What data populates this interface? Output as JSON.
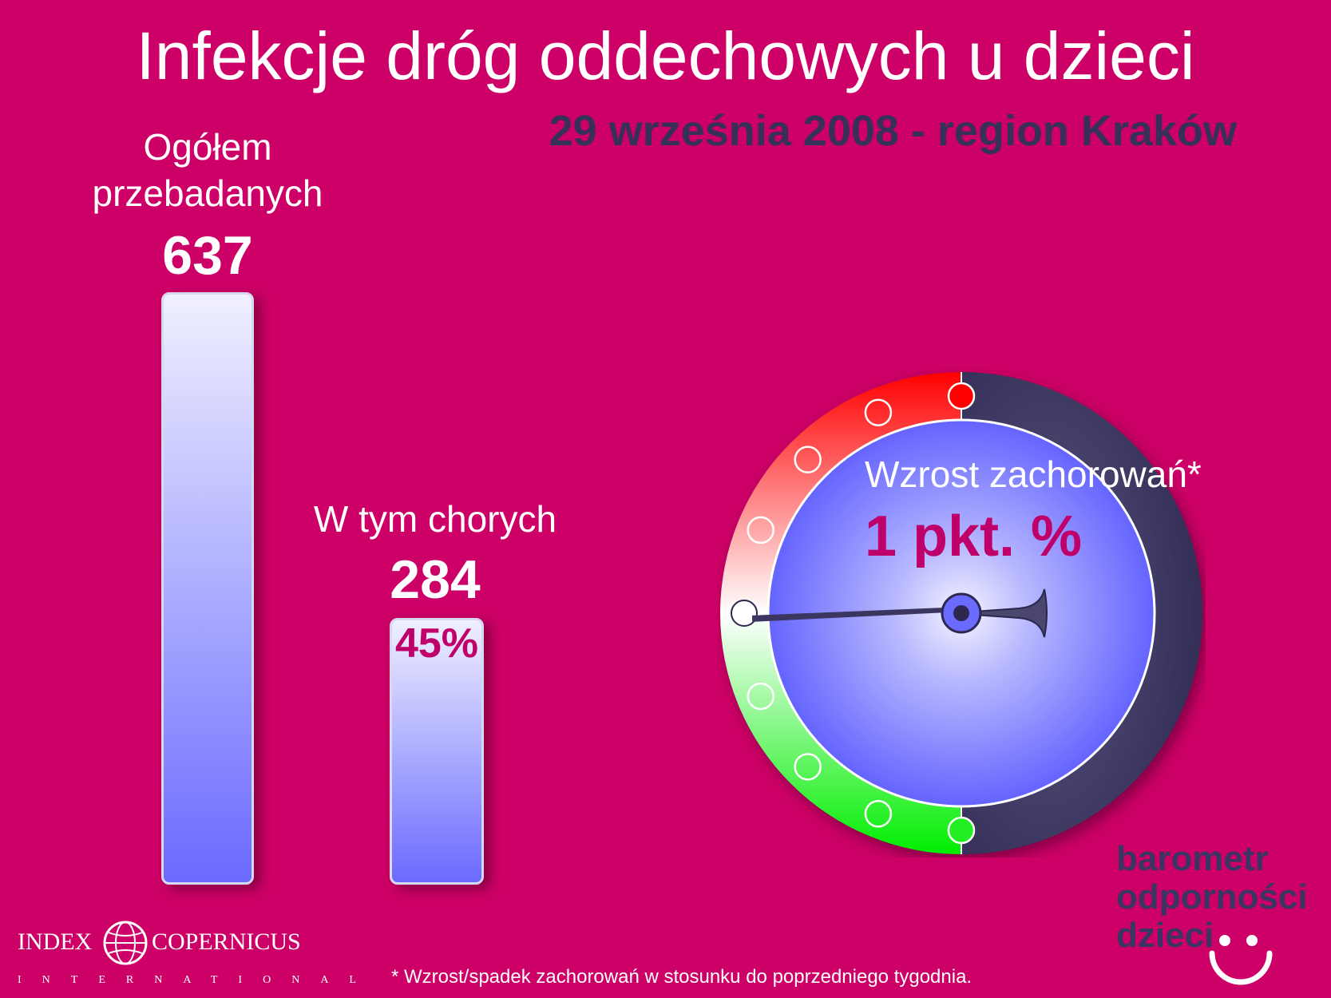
{
  "title": "Infekcje dróg oddechowych u dzieci",
  "subtitle": "29 września 2008 - region Kraków",
  "chart_data": [
    {
      "type": "bar",
      "categories": [
        "Ogółem przebadanych",
        "W tym chorych"
      ],
      "values": [
        637,
        284
      ],
      "data_labels": [
        "637",
        "284"
      ],
      "percent_label": "45%",
      "ylim": [
        0,
        637
      ]
    },
    {
      "type": "gauge",
      "label": "Wzrost zachorowań*",
      "value_text": "1 pkt. %",
      "value": 1,
      "zones": [
        {
          "name": "red",
          "color": "#ff1a1a"
        },
        {
          "name": "white",
          "color": "#ffffff"
        },
        {
          "name": "green",
          "color": "#22ee22"
        }
      ]
    }
  ],
  "labels": {
    "total_line1": "Ogółem",
    "total_line2": "przebadanych",
    "total_value": "637",
    "sick": "W tym chorych",
    "sick_value": "284",
    "sick_pct": "45%",
    "gauge_label": "Wzrost zachorowań*",
    "gauge_value": "1 pkt. %"
  },
  "brand": {
    "line1": "barometr",
    "line2": "odporności",
    "line3": "dzieci"
  },
  "index_copernicus": {
    "left": "INDEX",
    "right": "COPERNICUS",
    "sub": "INTERNATIONAL"
  },
  "footnote": "* Wzrost/spadek zachorowań w stosunku do poprzedniego tygodnia.",
  "colors": {
    "background": "#cc0066",
    "bar_top": "#f0f0ff",
    "bar_bottom": "#6a6aff",
    "dark_navy": "#36305a",
    "accent_magenta": "#c0006a"
  }
}
